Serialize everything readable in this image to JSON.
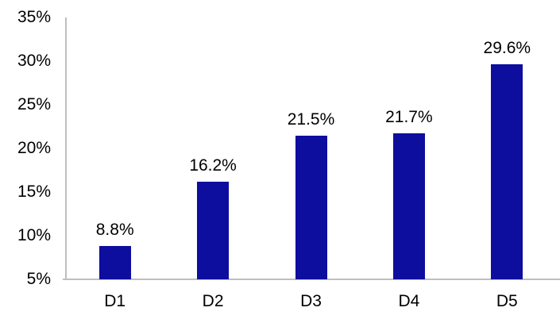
{
  "chart_data": {
    "type": "bar",
    "title": "",
    "xlabel": "",
    "ylabel": "",
    "categories": [
      "D1",
      "D2",
      "D3",
      "D4",
      "D5"
    ],
    "values": [
      8.8,
      16.2,
      21.5,
      21.7,
      29.6
    ],
    "value_labels": [
      "8.8%",
      "16.2%",
      "21.5%",
      "21.7%",
      "29.6%"
    ],
    "ylim": [
      5,
      35
    ],
    "ytick_step": 5,
    "ytick_labels": [
      "5%",
      "10%",
      "15%",
      "20%",
      "25%",
      "30%",
      "35%"
    ],
    "grid": false,
    "legend": false,
    "bar_color": "#0D0D9E",
    "axis_color": "#BFBFBF",
    "text_color": "#000000"
  }
}
